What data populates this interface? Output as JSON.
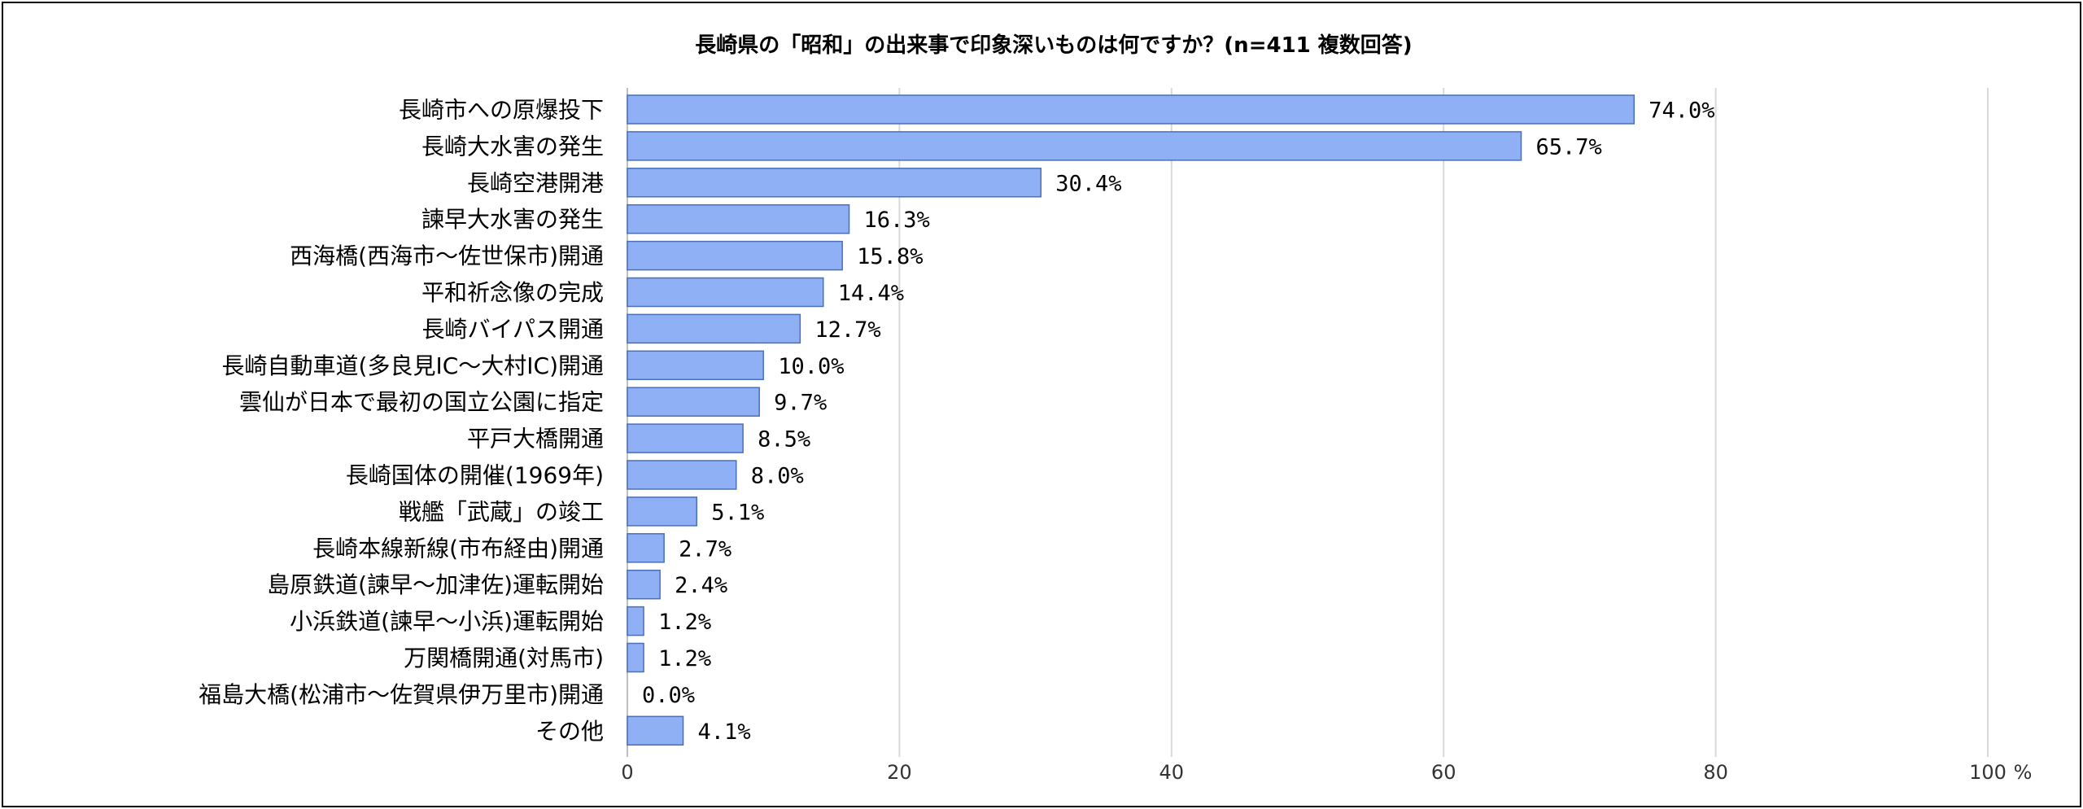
{
  "chart_data": {
    "type": "bar",
    "orientation": "horizontal",
    "title": "長崎県の「昭和」の出来事で印象深いものは何ですか？(n=411 複数回答)",
    "categories": [
      "長崎市への原爆投下",
      "長崎大水害の発生",
      "長崎空港開港",
      "諫早大水害の発生",
      "西海橋(西海市～佐世保市)開通",
      "平和祈念像の完成",
      "長崎バイパス開通",
      "長崎自動車道(多良見IC～大村IC)開通",
      "雲仙が日本で最初の国立公園に指定",
      "平戸大橋開通",
      "長崎国体の開催(1969年)",
      "戦艦「武蔵」の竣工",
      "長崎本線新線(市布経由)開通",
      "島原鉄道(諫早～加津佐)運転開始",
      "小浜鉄道(諫早～小浜)運転開始",
      "万関橋開通(対馬市)",
      "福島大橋(松浦市～佐賀県伊万里市)開通",
      "その他"
    ],
    "values": [
      74.0,
      65.7,
      30.4,
      16.3,
      15.8,
      14.4,
      12.7,
      10.0,
      9.7,
      8.5,
      8.0,
      5.1,
      2.7,
      2.4,
      1.2,
      1.2,
      0.0,
      4.1
    ],
    "value_labels": [
      "74.0%",
      "65.7%",
      "30.4%",
      "16.3%",
      "15.8%",
      "14.4%",
      "12.7%",
      "10.0%",
      "9.7%",
      "8.5%",
      "8.0%",
      "5.1%",
      "2.7%",
      "2.4%",
      "1.2%",
      "1.2%",
      "0.0%",
      "4.1%"
    ],
    "x_ticks": [
      0,
      20,
      40,
      60,
      80,
      100
    ],
    "xlim": [
      0,
      100
    ],
    "unit": "%",
    "grid": true,
    "legend": "none",
    "colors": {
      "bar_fill": "#8fb0f5",
      "bar_stroke": "#4a6fb8",
      "grid": "#d9d9d9"
    }
  }
}
